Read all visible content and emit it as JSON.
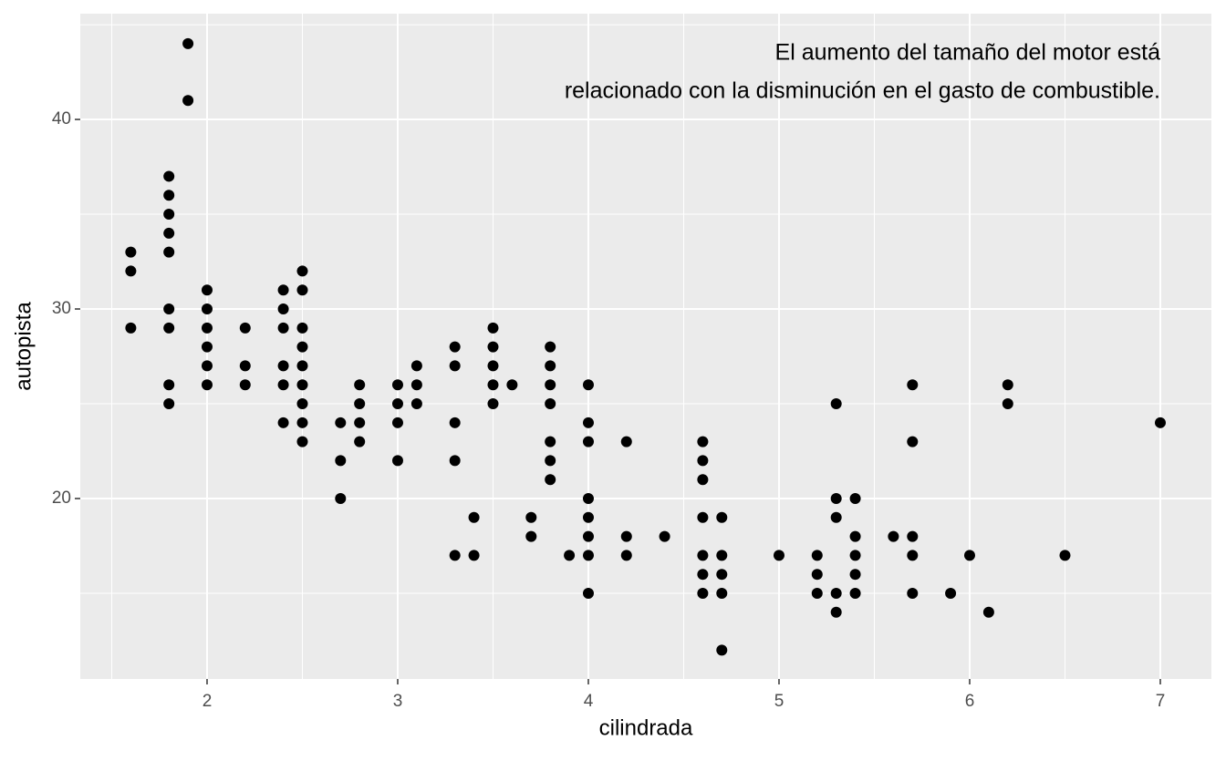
{
  "chart_data": {
    "type": "scatter",
    "annotation": [
      "El aumento del tamaño del motor está",
      "relacionado con la disminución en el gasto de combustible."
    ],
    "x_label": "cilindrada",
    "y_label": "autopista",
    "x": [
      1.6,
      1.6,
      1.6,
      1.8,
      1.8,
      1.8,
      1.8,
      1.8,
      1.8,
      1.8,
      1.8,
      1.8,
      1.9,
      1.9,
      2.0,
      2.0,
      2.0,
      2.0,
      2.0,
      2.0,
      2.2,
      2.2,
      2.2,
      2.4,
      2.4,
      2.4,
      2.4,
      2.4,
      2.4,
      2.5,
      2.5,
      2.5,
      2.5,
      2.5,
      2.5,
      2.5,
      2.5,
      2.5,
      2.7,
      2.7,
      2.7,
      2.8,
      2.8,
      2.8,
      2.8,
      3.0,
      3.0,
      3.0,
      3.0,
      3.1,
      3.1,
      3.1,
      3.3,
      3.3,
      3.3,
      3.3,
      3.3,
      3.4,
      3.4,
      3.5,
      3.5,
      3.5,
      3.5,
      3.5,
      3.6,
      3.7,
      3.7,
      3.8,
      3.8,
      3.8,
      3.8,
      3.8,
      3.8,
      3.8,
      3.9,
      4.0,
      4.0,
      4.0,
      4.0,
      4.0,
      4.0,
      4.0,
      4.0,
      4.2,
      4.2,
      4.2,
      4.4,
      4.6,
      4.6,
      4.6,
      4.6,
      4.6,
      4.6,
      4.6,
      4.7,
      4.7,
      4.7,
      4.7,
      4.7,
      5.0,
      5.2,
      5.2,
      5.2,
      5.3,
      5.3,
      5.3,
      5.3,
      5.3,
      5.4,
      5.4,
      5.4,
      5.4,
      5.4,
      5.6,
      5.7,
      5.7,
      5.7,
      5.7,
      5.7,
      5.9,
      6.0,
      6.1,
      6.2,
      6.2,
      6.5,
      7.0
    ],
    "y": [
      33,
      32,
      29,
      37,
      36,
      35,
      34,
      33,
      30,
      29,
      26,
      25,
      44,
      41,
      31,
      30,
      29,
      28,
      27,
      26,
      29,
      27,
      26,
      31,
      30,
      29,
      27,
      26,
      24,
      32,
      31,
      29,
      28,
      27,
      26,
      25,
      24,
      23,
      24,
      22,
      20,
      26,
      25,
      24,
      23,
      26,
      25,
      24,
      22,
      27,
      26,
      25,
      28,
      27,
      24,
      22,
      17,
      19,
      17,
      29,
      28,
      27,
      26,
      25,
      26,
      19,
      18,
      28,
      27,
      26,
      25,
      23,
      22,
      21,
      17,
      26,
      24,
      23,
      20,
      19,
      18,
      17,
      15,
      23,
      18,
      17,
      18,
      23,
      22,
      21,
      19,
      17,
      16,
      15,
      19,
      17,
      16,
      15,
      12,
      17,
      17,
      16,
      15,
      25,
      20,
      19,
      15,
      14,
      20,
      18,
      17,
      16,
      15,
      18,
      26,
      23,
      18,
      17,
      15,
      15,
      17,
      14,
      26,
      25,
      17,
      24
    ],
    "color": "#000000",
    "xlim": [
      1.335,
      7.268
    ],
    "xticks": [
      2,
      3,
      4,
      5,
      6,
      7
    ],
    "ylim": [
      10.48,
      45.58
    ],
    "yticks": [
      20,
      30,
      40
    ],
    "grid": true,
    "minor_grid": true
  }
}
